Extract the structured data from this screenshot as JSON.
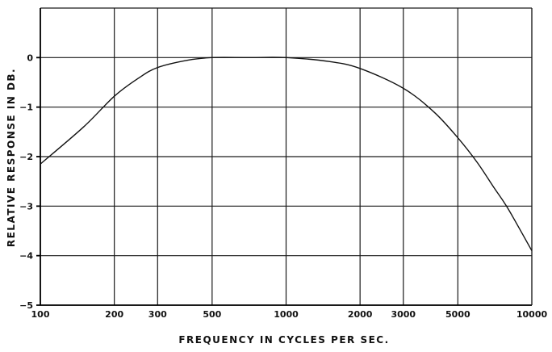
{
  "chart_data": {
    "type": "line",
    "xscale": "log",
    "xlabel": "FREQUENCY IN CYCLES PER SEC.",
    "ylabel": "RELATIVE RESPONSE IN DB.",
    "xlim": [
      100,
      10000
    ],
    "ylim": [
      -5,
      1
    ],
    "grid": true,
    "x_ticks": [
      {
        "value": 100,
        "label": "100"
      },
      {
        "value": 200,
        "label": "200"
      },
      {
        "value": 300,
        "label": "300"
      },
      {
        "value": 500,
        "label": "500"
      },
      {
        "value": 1000,
        "label": "1000"
      },
      {
        "value": 2000,
        "label": "2000"
      },
      {
        "value": 3000,
        "label": "3000"
      },
      {
        "value": 5000,
        "label": "5000"
      },
      {
        "value": 10000,
        "label": "10000"
      }
    ],
    "y_ticks": [
      {
        "value": 0,
        "label": "0"
      },
      {
        "value": -1,
        "label": "−1"
      },
      {
        "value": -2,
        "label": "−2"
      },
      {
        "value": -3,
        "label": "−3"
      },
      {
        "value": -4,
        "label": "−4"
      },
      {
        "value": -5,
        "label": "−5"
      }
    ],
    "series": [
      {
        "x": [
          100,
          150,
          200,
          250,
          300,
          400,
          500,
          700,
          1000,
          1500,
          2000,
          3000,
          4000,
          5000,
          6000,
          7000,
          8000,
          10000
        ],
        "y": [
          -2.15,
          -1.4,
          -0.78,
          -0.42,
          -0.2,
          -0.05,
          0.0,
          0.0,
          0.0,
          -0.08,
          -0.22,
          -0.62,
          -1.1,
          -1.62,
          -2.12,
          -2.62,
          -3.05,
          -3.9
        ]
      }
    ]
  }
}
